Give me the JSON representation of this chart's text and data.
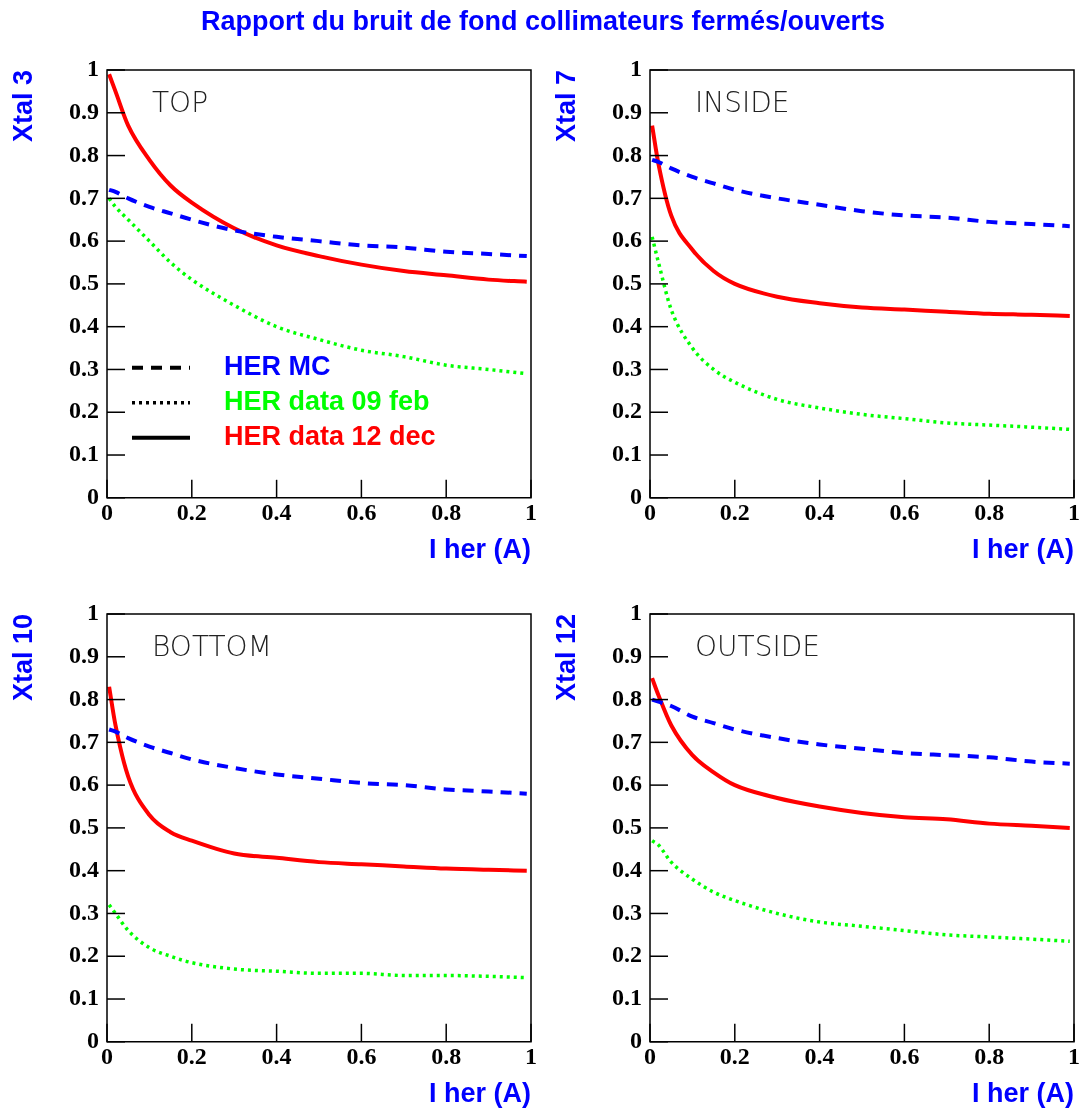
{
  "chart_data": [
    {
      "type": "line",
      "title": "Rapport du bruit de fond collimateurs fermés/ouverts",
      "xlabel": "I her (A)",
      "ylabel": "Xtal 3",
      "annotations": [
        "TOP"
      ],
      "legend": "bottom left",
      "grid": false,
      "x": [
        0.005,
        0.02,
        0.05,
        0.1,
        0.15,
        0.2,
        0.3,
        0.4,
        0.5,
        0.6,
        0.7,
        0.8,
        0.9,
        0.99
      ],
      "xlim": [
        0,
        1
      ],
      "xticks": [
        0,
        0.2,
        0.4,
        0.6,
        0.8,
        1
      ],
      "ylim": [
        0,
        1
      ],
      "yticks": [
        0,
        0.1,
        0.2,
        0.3,
        0.4,
        0.5,
        0.6,
        0.7,
        0.8,
        0.9,
        1
      ],
      "series": [
        {
          "name": "HER MC",
          "color": "#0000ff",
          "line_style": "dashed",
          "values": [
            0.72,
            0.715,
            0.7,
            0.68,
            0.665,
            0.65,
            0.625,
            0.61,
            0.6,
            0.59,
            0.585,
            0.575,
            0.57,
            0.565
          ]
        },
        {
          "name": "HER data 09 feb",
          "color": "#00ff00",
          "line_style": "dotted",
          "values": [
            0.7,
            0.68,
            0.65,
            0.6,
            0.55,
            0.51,
            0.45,
            0.4,
            0.37,
            0.345,
            0.33,
            0.31,
            0.3,
            0.29
          ]
        },
        {
          "name": "HER data 12 dec",
          "color": "#ff0000",
          "line_style": "solid",
          "values": [
            0.99,
            0.95,
            0.87,
            0.79,
            0.73,
            0.69,
            0.63,
            0.59,
            0.565,
            0.545,
            0.53,
            0.52,
            0.51,
            0.505
          ]
        }
      ]
    },
    {
      "type": "line",
      "xlabel": "I her (A)",
      "ylabel": "Xtal 7",
      "annotations": [
        "INSIDE"
      ],
      "grid": false,
      "x": [
        0.005,
        0.02,
        0.05,
        0.1,
        0.15,
        0.2,
        0.3,
        0.4,
        0.5,
        0.6,
        0.7,
        0.8,
        0.9,
        0.99
      ],
      "xlim": [
        0,
        1
      ],
      "xticks": [
        0,
        0.2,
        0.4,
        0.6,
        0.8,
        1
      ],
      "ylim": [
        0,
        1
      ],
      "yticks": [
        0,
        0.1,
        0.2,
        0.3,
        0.4,
        0.5,
        0.6,
        0.7,
        0.8,
        0.9,
        1
      ],
      "series": [
        {
          "color": "#0000ff",
          "line_style": "dashed",
          "values": [
            0.79,
            0.785,
            0.77,
            0.75,
            0.735,
            0.72,
            0.7,
            0.685,
            0.67,
            0.66,
            0.655,
            0.645,
            0.64,
            0.635
          ]
        },
        {
          "color": "#00ff00",
          "line_style": "dotted",
          "values": [
            0.61,
            0.55,
            0.44,
            0.35,
            0.3,
            0.27,
            0.23,
            0.21,
            0.195,
            0.185,
            0.175,
            0.17,
            0.165,
            0.16
          ]
        },
        {
          "color": "#ff0000",
          "line_style": "solid",
          "values": [
            0.87,
            0.78,
            0.66,
            0.58,
            0.53,
            0.5,
            0.47,
            0.455,
            0.445,
            0.44,
            0.435,
            0.43,
            0.428,
            0.425
          ]
        }
      ]
    },
    {
      "type": "line",
      "xlabel": "I her (A)",
      "ylabel": "Xtal 10",
      "annotations": [
        "BOTTOM"
      ],
      "grid": false,
      "x": [
        0.005,
        0.02,
        0.05,
        0.1,
        0.15,
        0.2,
        0.3,
        0.4,
        0.5,
        0.6,
        0.7,
        0.8,
        0.9,
        0.99
      ],
      "xlim": [
        0,
        1
      ],
      "xticks": [
        0,
        0.2,
        0.4,
        0.6,
        0.8,
        1
      ],
      "ylim": [
        0,
        1
      ],
      "yticks": [
        0,
        0.1,
        0.2,
        0.3,
        0.4,
        0.5,
        0.6,
        0.7,
        0.8,
        0.9,
        1
      ],
      "series": [
        {
          "color": "#0000ff",
          "line_style": "dashed",
          "values": [
            0.73,
            0.725,
            0.71,
            0.69,
            0.675,
            0.66,
            0.64,
            0.625,
            0.615,
            0.605,
            0.6,
            0.59,
            0.585,
            0.58
          ]
        },
        {
          "color": "#00ff00",
          "line_style": "dotted",
          "values": [
            0.32,
            0.3,
            0.26,
            0.22,
            0.2,
            0.185,
            0.17,
            0.165,
            0.16,
            0.16,
            0.155,
            0.155,
            0.153,
            0.15
          ]
        },
        {
          "color": "#ff0000",
          "line_style": "solid",
          "values": [
            0.83,
            0.74,
            0.62,
            0.53,
            0.49,
            0.47,
            0.44,
            0.43,
            0.42,
            0.415,
            0.41,
            0.405,
            0.402,
            0.4
          ]
        }
      ]
    },
    {
      "type": "line",
      "xlabel": "I her (A)",
      "ylabel": "Xtal 12",
      "annotations": [
        "OUTSIDE"
      ],
      "grid": false,
      "x": [
        0.005,
        0.02,
        0.05,
        0.1,
        0.15,
        0.2,
        0.3,
        0.4,
        0.5,
        0.6,
        0.7,
        0.8,
        0.9,
        0.99
      ],
      "xlim": [
        0,
        1
      ],
      "xticks": [
        0,
        0.2,
        0.4,
        0.6,
        0.8,
        1
      ],
      "ylim": [
        0,
        1
      ],
      "yticks": [
        0,
        0.1,
        0.2,
        0.3,
        0.4,
        0.5,
        0.6,
        0.7,
        0.8,
        0.9,
        1
      ],
      "series": [
        {
          "color": "#0000ff",
          "line_style": "dashed",
          "values": [
            0.8,
            0.795,
            0.785,
            0.76,
            0.745,
            0.73,
            0.71,
            0.695,
            0.685,
            0.675,
            0.67,
            0.665,
            0.655,
            0.65
          ]
        },
        {
          "color": "#00ff00",
          "line_style": "dotted",
          "values": [
            0.47,
            0.46,
            0.42,
            0.38,
            0.35,
            0.33,
            0.3,
            0.28,
            0.27,
            0.26,
            0.25,
            0.245,
            0.24,
            0.235
          ]
        },
        {
          "color": "#ff0000",
          "line_style": "solid",
          "values": [
            0.85,
            0.81,
            0.74,
            0.67,
            0.63,
            0.6,
            0.57,
            0.55,
            0.535,
            0.525,
            0.52,
            0.51,
            0.505,
            0.5
          ]
        }
      ]
    }
  ]
}
